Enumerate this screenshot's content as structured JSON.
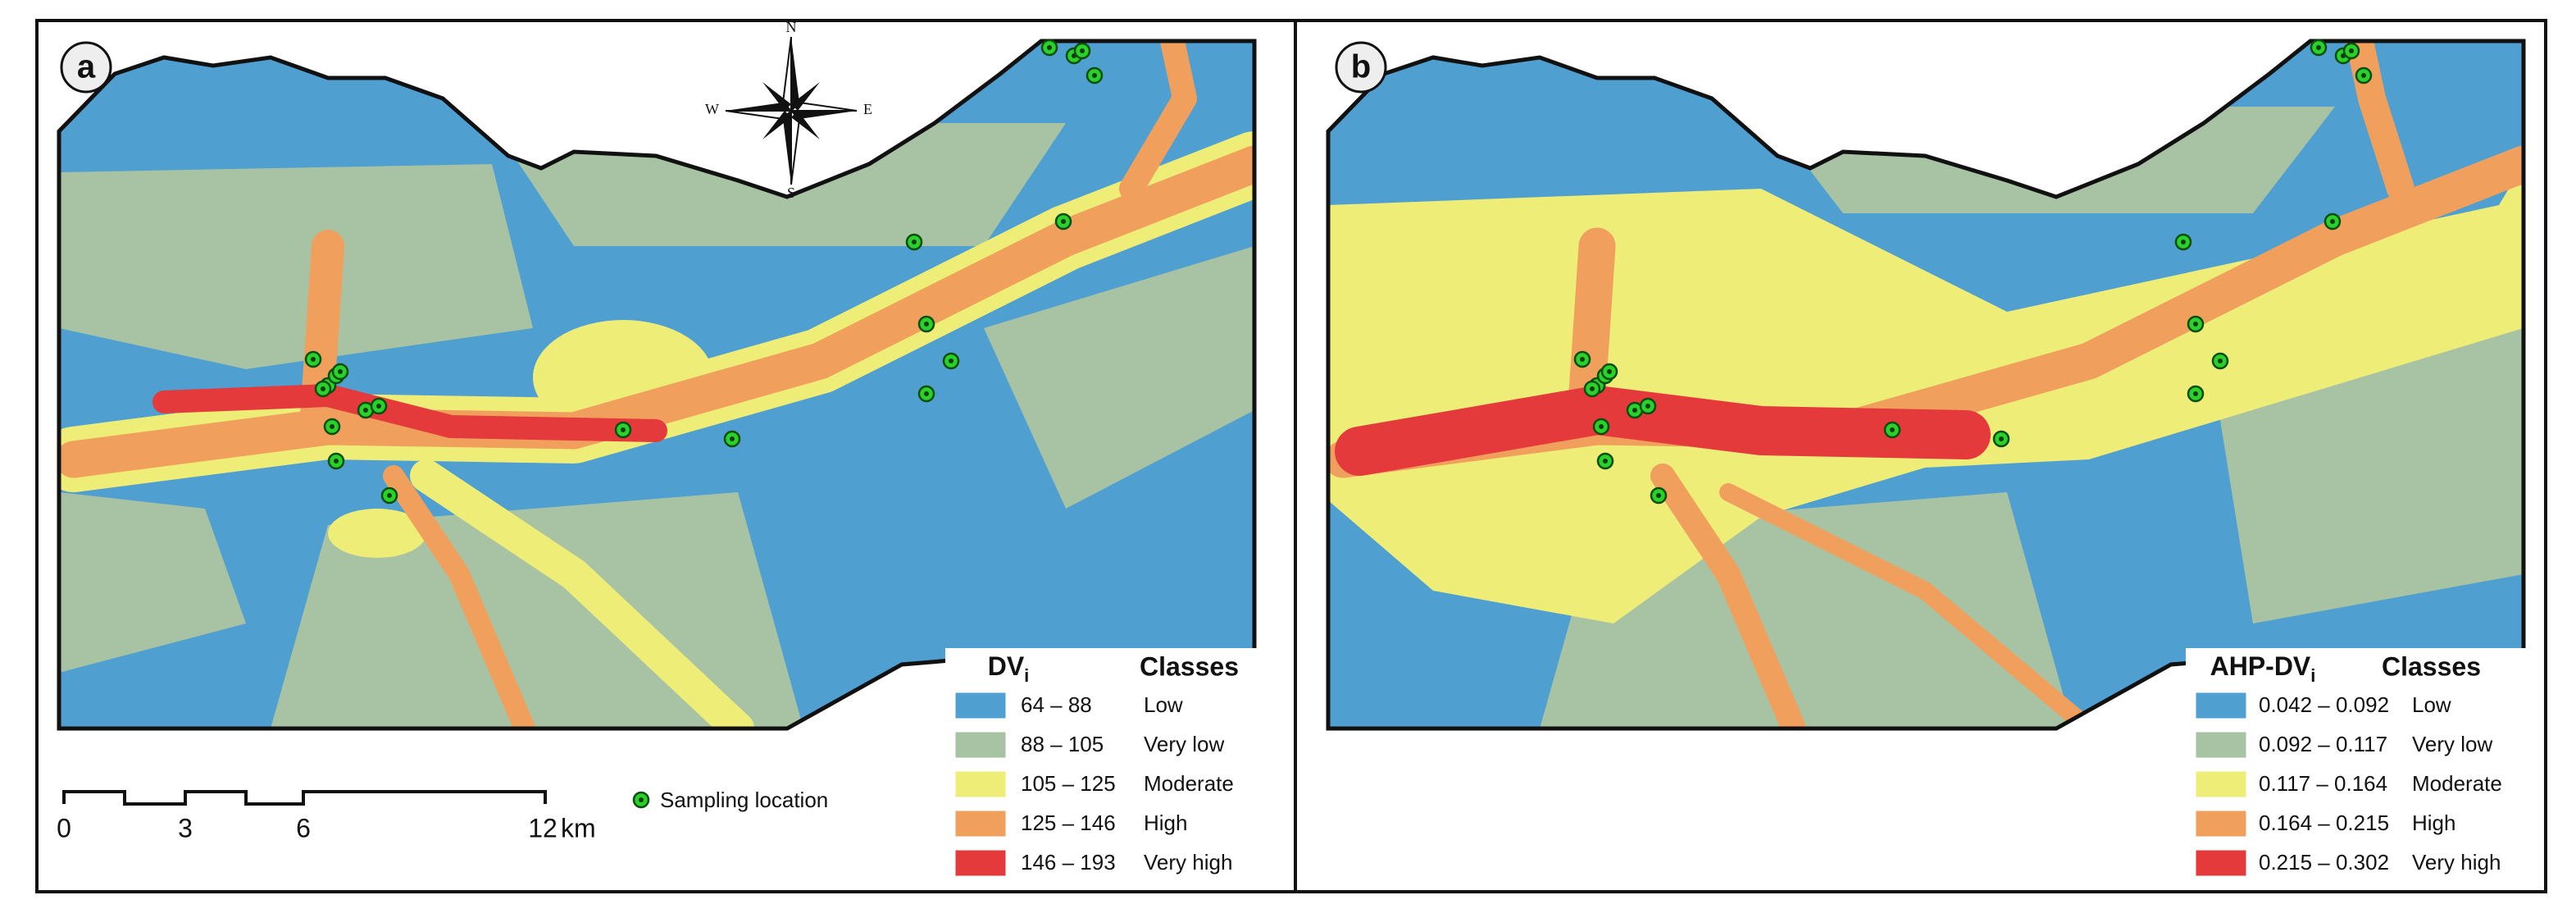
{
  "panels": [
    {
      "label": "a",
      "legend": {
        "index_title": "DV",
        "index_subscript": "i",
        "classes_title": "Classes",
        "entries": [
          {
            "range": "64 – 88",
            "class": "Low",
            "color": "#4f9fd1"
          },
          {
            "range": "88 – 105",
            "class": "Very low",
            "color": "#a8c3a3"
          },
          {
            "range": "105 – 125",
            "class": "Moderate",
            "color": "#eeed78"
          },
          {
            "range": "125 – 146",
            "class": "High",
            "color": "#f0a05c"
          },
          {
            "range": "146 – 193",
            "class": "Very high",
            "color": "#e43a3c"
          }
        ]
      }
    },
    {
      "label": "b",
      "legend": {
        "index_title": "AHP-DV",
        "index_subscript": "i",
        "classes_title": "Classes",
        "entries": [
          {
            "range": "0.042 – 0.092",
            "class": "Low",
            "color": "#4f9fd1"
          },
          {
            "range": "0.092 – 0.117",
            "class": "Very low",
            "color": "#a8c3a3"
          },
          {
            "range": "0.117 – 0.164",
            "class": "Moderate",
            "color": "#eeed78"
          },
          {
            "range": "0.164 – 0.215",
            "class": "High",
            "color": "#f0a05c"
          },
          {
            "range": "0.215 – 0.302",
            "class": "Very high",
            "color": "#e43a3c"
          }
        ]
      }
    }
  ],
  "compass": {
    "north": "N",
    "east": "E",
    "south": "S",
    "west": "W"
  },
  "scale_bar": {
    "ticks": [
      "0",
      "3",
      "6",
      "12"
    ],
    "unit": "km"
  },
  "sampling_legend": "Sampling location"
}
